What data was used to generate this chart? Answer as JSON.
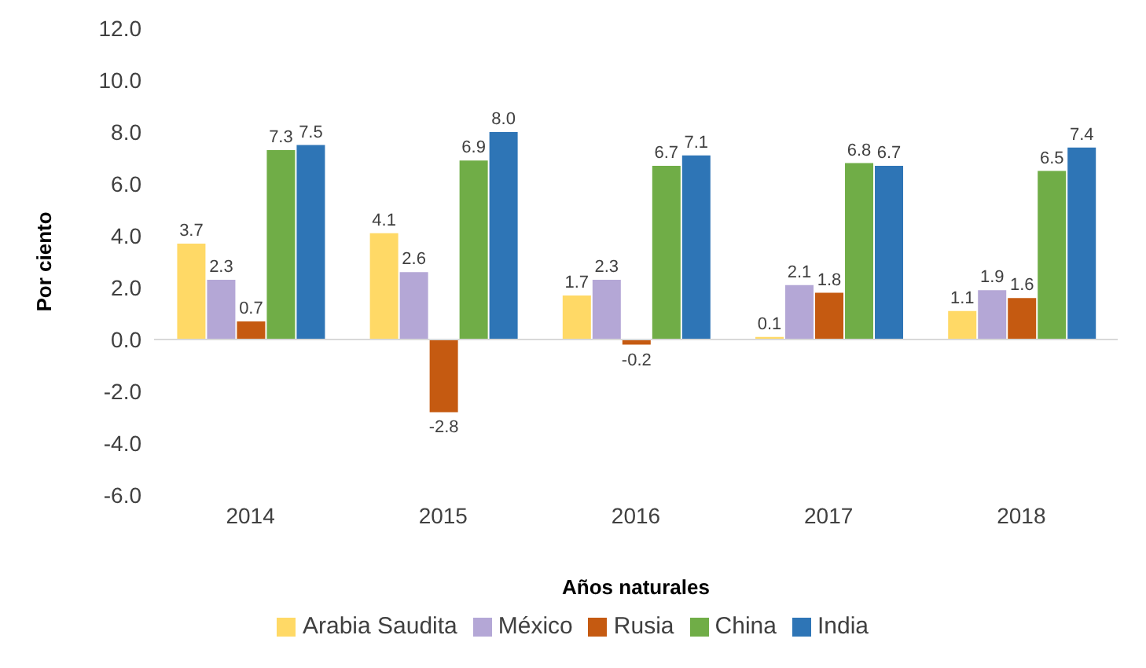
{
  "chart_data": {
    "type": "bar",
    "xlabel": "Años naturales",
    "ylabel": "Por ciento",
    "categories": [
      "2014",
      "2015",
      "2016",
      "2017",
      "2018"
    ],
    "series": [
      {
        "name": "Arabia Saudita",
        "color": "#ffd966",
        "values": [
          3.7,
          4.1,
          1.7,
          0.1,
          1.1
        ],
        "value_labels": [
          "3.7",
          "4.1",
          "1.7",
          "0.1",
          "1.1"
        ]
      },
      {
        "name": "México",
        "color": "#b4a7d6",
        "values": [
          2.3,
          2.6,
          2.3,
          2.1,
          1.9
        ],
        "value_labels": [
          "2.3",
          "2.6",
          "2.3",
          "2.1",
          "1.9"
        ]
      },
      {
        "name": "Rusia",
        "color": "#c55a11",
        "values": [
          0.7,
          -2.8,
          -0.2,
          1.8,
          1.6
        ],
        "value_labels": [
          "0.7",
          "-2.8",
          "-0.2",
          "1.8",
          "1.6"
        ]
      },
      {
        "name": "China",
        "color": "#70ad47",
        "values": [
          7.3,
          6.9,
          6.7,
          6.8,
          6.5
        ],
        "value_labels": [
          "7.3",
          "6.9",
          "6.7",
          "6.8",
          "6.5"
        ]
      },
      {
        "name": "India",
        "color": "#2e75b6",
        "values": [
          7.5,
          8.0,
          7.1,
          6.7,
          7.4
        ],
        "value_labels": [
          "7.5",
          "8.0",
          "7.1",
          "6.7",
          "7.4"
        ]
      }
    ],
    "ylim": [
      -6,
      12
    ],
    "yticks": [
      {
        "value": -6,
        "label": "-6.0"
      },
      {
        "value": -4,
        "label": "-4.0"
      },
      {
        "value": -2,
        "label": "-2.0"
      },
      {
        "value": 0,
        "label": "0.0"
      },
      {
        "value": 2,
        "label": "2.0"
      },
      {
        "value": 4,
        "label": "4.0"
      },
      {
        "value": 6,
        "label": "6.0"
      },
      {
        "value": 8,
        "label": "8.0"
      },
      {
        "value": 10,
        "label": "10.0"
      },
      {
        "value": 12,
        "label": "12.0"
      }
    ],
    "legend": "bottom"
  }
}
